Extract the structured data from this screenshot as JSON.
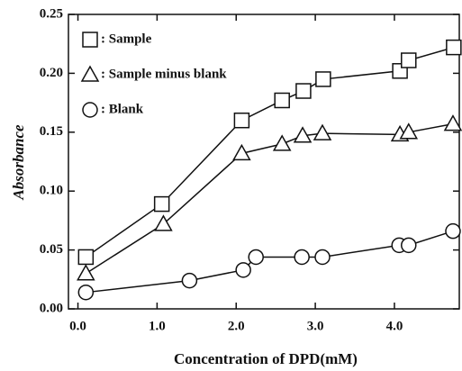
{
  "chart_data": {
    "type": "line",
    "xlabel": "Concentration of DPD(mM)",
    "ylabel": "Absorbance",
    "xlim": [
      -0.12,
      4.82
    ],
    "ylim": [
      0,
      0.25
    ],
    "xticks": [
      {
        "value": 0,
        "label": "0.0"
      },
      {
        "value": 1,
        "label": "1.0"
      },
      {
        "value": 2,
        "label": "2.0"
      },
      {
        "value": 3,
        "label": "3.0"
      },
      {
        "value": 4,
        "label": "4.0"
      }
    ],
    "yticks": [
      {
        "value": 0,
        "label": "0.00"
      },
      {
        "value": 0.05,
        "label": "0.05"
      },
      {
        "value": 0.1,
        "label": "0.10"
      },
      {
        "value": 0.15,
        "label": "0.15"
      },
      {
        "value": 0.2,
        "label": "0.20"
      },
      {
        "value": 0.25,
        "label": "0.25"
      }
    ],
    "series": [
      {
        "name": ": Sample",
        "marker": "square",
        "color": "#111111",
        "x": [
          0.1,
          1.06,
          2.07,
          2.58,
          2.85,
          3.1,
          4.07,
          4.18,
          4.75
        ],
        "values": [
          0.044,
          0.089,
          0.16,
          0.177,
          0.185,
          0.195,
          0.202,
          0.211,
          0.222
        ]
      },
      {
        "name": ": Sample minus blank",
        "marker": "triangle",
        "color": "#111111",
        "x": [
          0.1,
          1.08,
          2.07,
          2.58,
          2.84,
          3.09,
          4.07,
          4.18,
          4.74
        ],
        "values": [
          0.03,
          0.072,
          0.132,
          0.14,
          0.147,
          0.149,
          0.148,
          0.15,
          0.157
        ]
      },
      {
        "name": ": Blank",
        "marker": "circle",
        "color": "#111111",
        "x": [
          0.1,
          1.41,
          2.09,
          2.25,
          2.83,
          3.09,
          4.06,
          4.18,
          4.74
        ],
        "values": [
          0.014,
          0.024,
          0.033,
          0.044,
          0.044,
          0.044,
          0.054,
          0.054,
          0.066
        ]
      }
    ]
  }
}
